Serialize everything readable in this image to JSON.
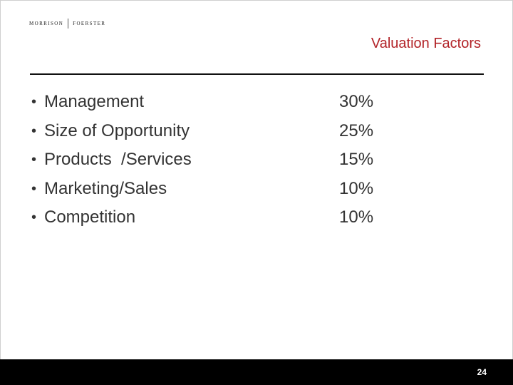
{
  "logo": {
    "left": "MORRISON",
    "right": "FOERSTER"
  },
  "title": "Valuation Factors",
  "factors": [
    {
      "label": "Management",
      "percent": "30%"
    },
    {
      "label": "Size of Opportunity",
      "percent": "25%"
    },
    {
      "label": "Products  /Services",
      "percent": "15%"
    },
    {
      "label": "Marketing/Sales",
      "percent": "10%"
    },
    {
      "label": "Competition",
      "percent": "10%"
    }
  ],
  "bullet": "•",
  "page_number": "24",
  "colors": {
    "title": "#b22328",
    "text": "#333333",
    "footer": "#000000"
  }
}
